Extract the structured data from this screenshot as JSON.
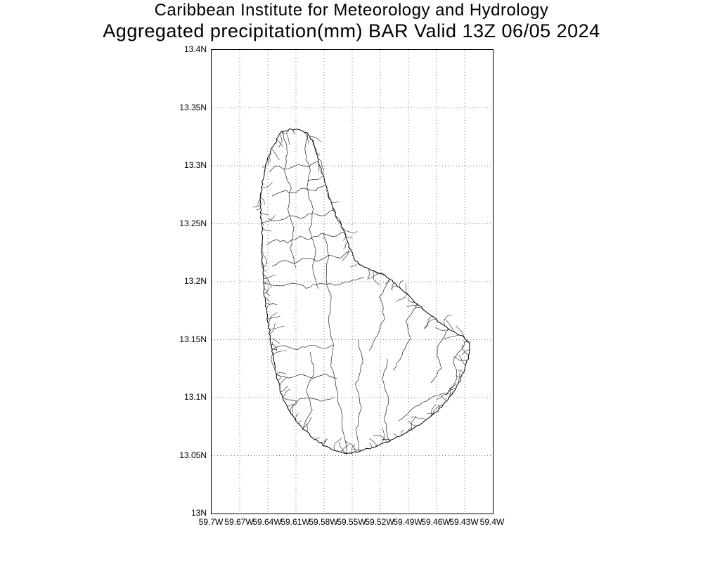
{
  "header": {
    "line1": "Caribbean Institute for Meteorology and Hydrology",
    "line2": "Aggregated precipitation(mm) BAR Valid 13Z 06/05 2024"
  },
  "map": {
    "y_axis": {
      "ticks": [
        "13.4N",
        "13.35N",
        "13.3N",
        "13.25N",
        "13.2N",
        "13.15N",
        "13.1N",
        "13.05N",
        "13N"
      ]
    },
    "x_axis": {
      "ticks": [
        "59.7W",
        "59.67W",
        "59.64W",
        "59.61W",
        "59.58W",
        "59.55W",
        "59.52W",
        "59.49W",
        "59.46W",
        "59.43W",
        "59.4W"
      ]
    },
    "colors": {
      "background": "#ffffff",
      "text": "#000000",
      "coastline": "#000000",
      "watershed_lines": "#222222",
      "gridline": "#808080",
      "frame": "#000000"
    }
  }
}
